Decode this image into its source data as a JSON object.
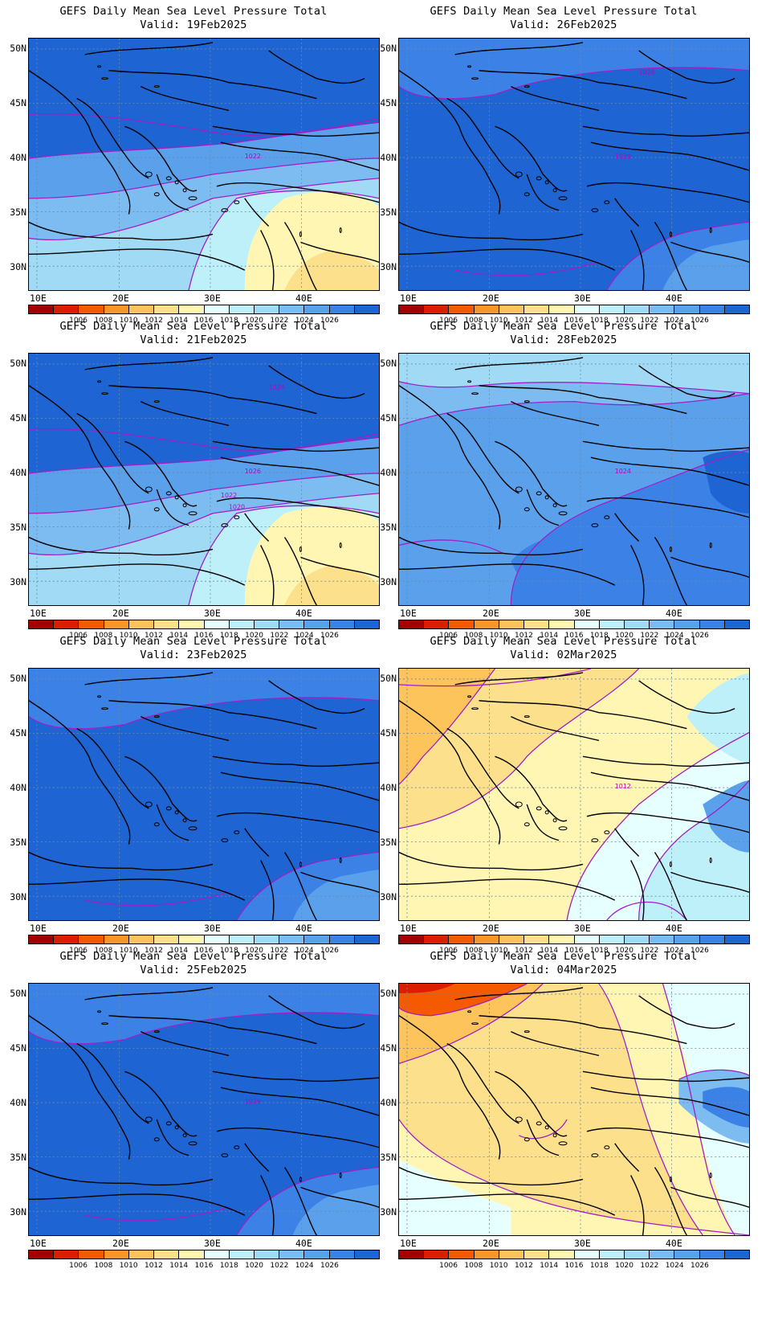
{
  "colorbar": {
    "colors": [
      "#a50000",
      "#dc1e00",
      "#f55a00",
      "#fa9628",
      "#fcc45a",
      "#fde08c",
      "#fff6b4",
      "#e6ffff",
      "#bef0fa",
      "#a0daf5",
      "#7dbcf0",
      "#5aa0eb",
      "#3c82e6",
      "#1e64d2"
    ],
    "labels": [
      "1006",
      "1008",
      "1010",
      "1012",
      "1014",
      "1016",
      "1018",
      "1020",
      "1022",
      "1024",
      "1026"
    ]
  },
  "axes": {
    "lat_labels": [
      "50N",
      "45N",
      "40N",
      "35N",
      "30N"
    ],
    "lon_labels": [
      "10E",
      "20E",
      "30E",
      "40E"
    ]
  },
  "panels": [
    {
      "title": "GEFS Daily Mean Sea Level Pressure Total",
      "valid": "Valid: 19Feb2025",
      "isobar_labels": [
        "1022"
      ],
      "pattern": "high-north-low-southeast"
    },
    {
      "title": "GEFS Daily Mean Sea Level Pressure Total",
      "valid": "Valid: 26Feb2025",
      "isobar_labels": [
        "1026",
        "1026"
      ],
      "pattern": "strong-high"
    },
    {
      "title": "GEFS Daily Mean Sea Level Pressure Total",
      "valid": "Valid: 21Feb2025",
      "isobar_labels": [
        "1026",
        "1024",
        "1022",
        "1020"
      ],
      "pattern": "high-north-low-southeast"
    },
    {
      "title": "GEFS Daily Mean Sea Level Pressure Total",
      "valid": "Valid: 28Feb2025",
      "isobar_labels": [
        "1024"
      ],
      "pattern": "moderate-high"
    },
    {
      "title": "GEFS Daily Mean Sea Level Pressure Total",
      "valid": "Valid: 23Feb2025",
      "isobar_labels": [],
      "pattern": "strong-high"
    },
    {
      "title": "GEFS Daily Mean Sea Level Pressure Total",
      "valid": "Valid: 02Mar2025",
      "isobar_labels": [
        "1012"
      ],
      "pattern": "low-west-high-east"
    },
    {
      "title": "GEFS Daily Mean Sea Level Pressure Total",
      "valid": "Valid: 25Feb2025",
      "isobar_labels": [
        "1026"
      ],
      "pattern": "strong-high"
    },
    {
      "title": "GEFS Daily Mean Sea Level Pressure Total",
      "valid": "Valid: 04Mar2025",
      "isobar_labels": [],
      "pattern": "deep-low-northwest"
    }
  ]
}
